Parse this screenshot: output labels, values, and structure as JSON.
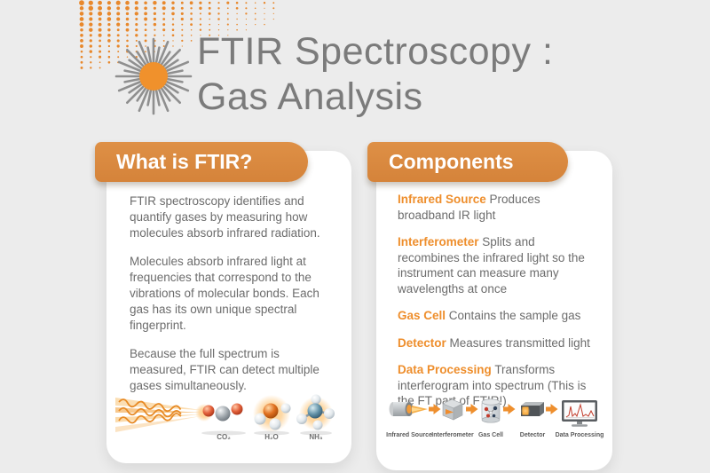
{
  "header": {
    "title_line1": "FTIR Spectroscopy :",
    "title_line2": "Gas Analysis"
  },
  "left_card": {
    "banner": "What is FTIR?",
    "paragraph1": "FTIR spectroscopy identifies and quantify gases by measuring how molecules absorb infrared radiation.",
    "paragraph2": "Molecules absorb infrared light at frequencies that correspond to the vibrations of molecular bonds. Each gas has its own unique spectral fingerprint.",
    "paragraph3": "Because the full spectrum is measured, FTIR can detect multiple gases simultaneously.",
    "molecule_labels": [
      "CO₂",
      "H₂O",
      "NH₃"
    ]
  },
  "right_card": {
    "banner": "Components",
    "items": [
      {
        "term": "Infrared Source",
        "desc": "Produces broadband IR light"
      },
      {
        "term": "Interferometer",
        "desc": "Splits and recombines the infrared light so the instrument can measure many wavelengths at once"
      },
      {
        "term": "Gas Cell",
        "desc": "Contains the sample gas"
      },
      {
        "term": "Detector",
        "desc": "Measures transmitted light"
      },
      {
        "term": "Data Processing",
        "desc": "Transforms interferogram into spectrum (This is the FT part of FTIR!)"
      }
    ],
    "flow_labels": [
      "Infrared Source",
      "Interferometer",
      "Gas Cell",
      "Detector",
      "Data Processing"
    ]
  },
  "colors": {
    "background": "#ECECEC",
    "banner_orange": "#DB8A3E",
    "term_orange": "#EE8E2C",
    "title_gray": "#7B7B7B",
    "body_gray": "#6C6C6C",
    "dot_orange": "#E8882C"
  }
}
